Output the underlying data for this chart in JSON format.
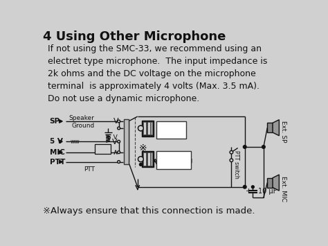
{
  "title": "4 Using Other Microphone",
  "title_fontsize": 13,
  "body_text": "If not using the SMC-33, we recommend using an\nelectret type microphone.  The input impedance is\n2k ohms and the DC voltage on the microphone\nterminal  is approximately 4 volts (Max. 3.5 mA).\nDo not use a dynamic microphone.",
  "body_fontsize": 9,
  "footer_text": "※Always ensure that this connection is made.",
  "footer_fontsize": 9.5,
  "bg_color": "#d0d0d0",
  "text_color": "#111111"
}
